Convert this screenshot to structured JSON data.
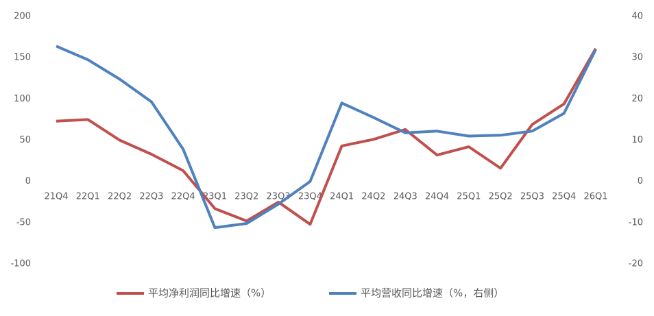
{
  "chart_data": {
    "type": "line",
    "categories": [
      "21Q4",
      "22Q1",
      "22Q2",
      "22Q3",
      "22Q4",
      "23Q1",
      "23Q2",
      "23Q3",
      "23Q4",
      "24Q1",
      "24Q2",
      "24Q3",
      "24Q4",
      "25Q1",
      "25Q2",
      "25Q3",
      "25Q4",
      "26Q1"
    ],
    "series": [
      {
        "name": "平均净利润同比增速（%）",
        "color": "#c0504d",
        "values": [
          73,
          75,
          50,
          33,
          13,
          -33,
          -48,
          -25,
          -52,
          43,
          51,
          63,
          32,
          42,
          16,
          69,
          94,
          161
        ]
      },
      {
        "name": "平均营收同比增速（%，右侧）",
        "color": "#4f81bd",
        "axis": "y2",
        "values": [
          32.8,
          29.5,
          24.8,
          19.3,
          7.8,
          -11.2,
          -10.2,
          -5.5,
          0,
          19,
          15.5,
          11.8,
          12.2,
          11,
          11.2,
          12.2,
          16.5,
          32
        ]
      }
    ],
    "ylim": [
      -100,
      200
    ],
    "yticks": [
      -100,
      -50,
      0,
      50,
      100,
      150,
      200
    ],
    "y2lim": [
      -20,
      40
    ],
    "y2ticks": [
      -20,
      -10,
      0,
      10,
      20,
      30,
      40
    ],
    "legend": "bottom"
  }
}
